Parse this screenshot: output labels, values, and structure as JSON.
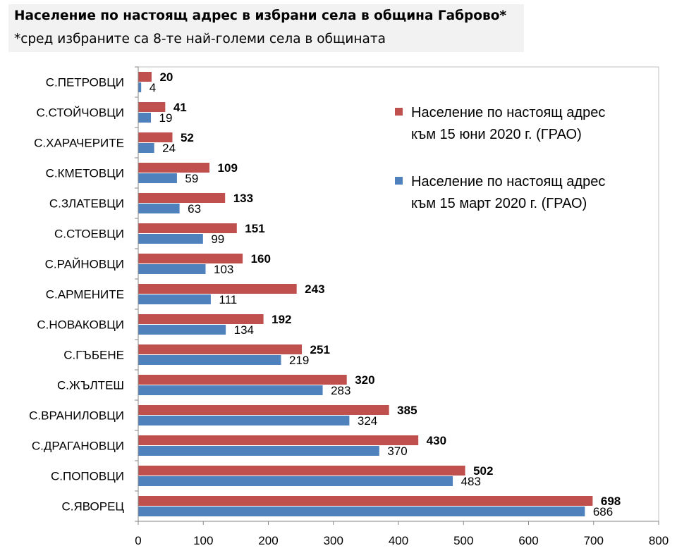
{
  "header": {
    "title": "Население по настоящ адрес в избрани села в община Габрово*",
    "subtitle": "*сред избраните са 8-те най-големи села в общината"
  },
  "chart_data": {
    "type": "bar",
    "orientation": "horizontal",
    "categories": [
      "С.ПЕТРОВЦИ",
      "С.СТОЙЧОВЦИ",
      "С.ХАРАЧЕРИТЕ",
      "С.КМЕТОВЦИ",
      "С.ЗЛАТЕВЦИ",
      "С.СТОЕВЦИ",
      "С.РАЙНОВЦИ",
      "С.АРМЕНИТЕ",
      "С.НОВАКОВЦИ",
      "С.ГЪБЕНЕ",
      "С.ЖЪЛТЕШ",
      "С.ВРАНИЛОВЦИ",
      "С.ДРАГАНОВЦИ",
      "С.ПОПОВЦИ",
      "С.ЯВОРЕЦ"
    ],
    "series": [
      {
        "name": "Население по настоящ адрес към 15 юни 2020 г. (ГРАО)",
        "legend_lines": [
          "Население по настоящ адрес",
          "към 15 юни 2020 г. (ГРАО)"
        ],
        "color": "#c0504d",
        "label_style": "bold",
        "values": [
          20,
          41,
          52,
          109,
          133,
          151,
          160,
          243,
          192,
          251,
          320,
          385,
          430,
          502,
          698
        ]
      },
      {
        "name": "Население по настоящ адрес към 15 март 2020 г. (ГРАО)",
        "legend_lines": [
          "Население по настоящ адрес",
          "към 15 март 2020 г. (ГРАО)"
        ],
        "color": "#4f81bd",
        "label_style": "normal",
        "values": [
          4,
          19,
          24,
          59,
          63,
          99,
          103,
          111,
          134,
          219,
          283,
          324,
          370,
          483,
          686
        ]
      }
    ],
    "xlim": [
      0,
      800
    ],
    "xticks": [
      0,
      100,
      200,
      300,
      400,
      500,
      600,
      700,
      800
    ],
    "grid": false,
    "legend_position": "top-right"
  }
}
